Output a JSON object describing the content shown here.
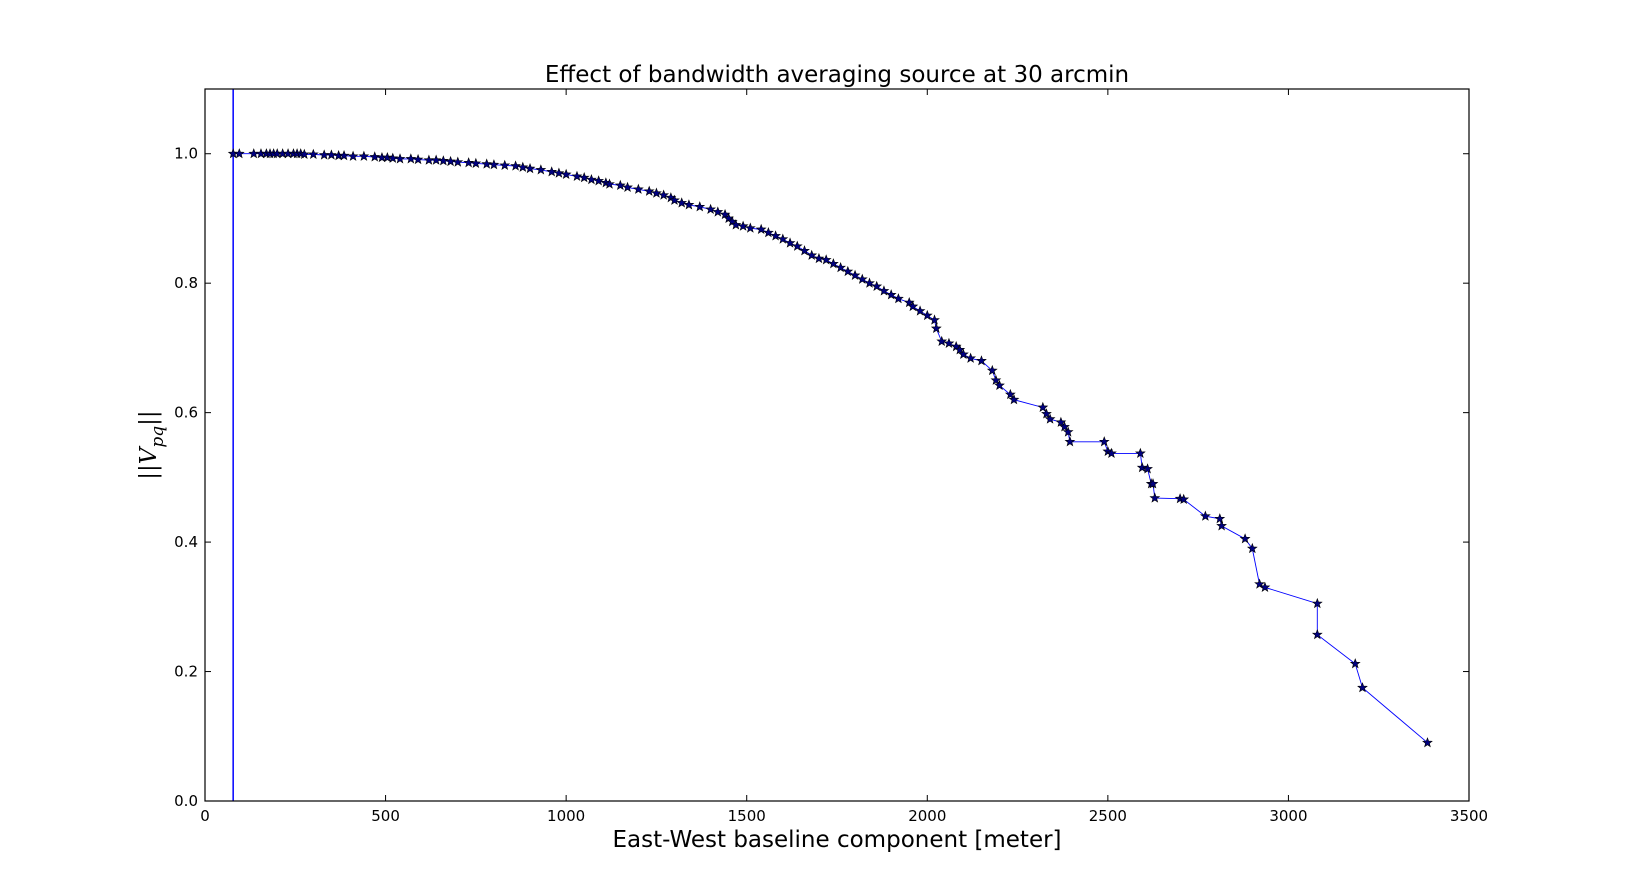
{
  "chart_data": {
    "type": "line",
    "title": "Effect of bandwidth averaging source at 30 arcmin",
    "xlabel": "East-West baseline component [meter]",
    "ylabel_main": "||V",
    "ylabel_sub": "pq",
    "ylabel_end": "||",
    "xlim": [
      0,
      3500
    ],
    "ylim": [
      0.0,
      1.1
    ],
    "xticks": [
      0,
      500,
      1000,
      1500,
      2000,
      2500,
      3000,
      3500
    ],
    "yticks": [
      0.0,
      0.2,
      0.4,
      0.6,
      0.8,
      1.0
    ],
    "xtick_labels": [
      "0",
      "500",
      "1000",
      "1500",
      "2000",
      "2500",
      "3000",
      "3500"
    ],
    "ytick_labels": [
      "0.0",
      "0.2",
      "0.4",
      "0.6",
      "0.8",
      "1.0"
    ],
    "grid": false,
    "vertical_line_x": 78,
    "line_color": "#0000ff",
    "marker_color": "#000080",
    "marker": "star",
    "series": [
      {
        "x": [
          78,
          95,
          135,
          155,
          170,
          180,
          190,
          200,
          215,
          230,
          245,
          255,
          265,
          275,
          300,
          330,
          350,
          370,
          385,
          410,
          440,
          470,
          490,
          505,
          520,
          540,
          570,
          590,
          620,
          640,
          660,
          680,
          700,
          730,
          750,
          780,
          800,
          830,
          860,
          880,
          900,
          930,
          960,
          980,
          1000,
          1030,
          1050,
          1070,
          1090,
          1110,
          1120,
          1150,
          1170,
          1200,
          1230,
          1250,
          1270,
          1290,
          1300,
          1320,
          1340,
          1370,
          1400,
          1420,
          1440,
          1450,
          1460,
          1470,
          1490,
          1510,
          1540,
          1560,
          1580,
          1600,
          1620,
          1640,
          1660,
          1680,
          1700,
          1720,
          1740,
          1760,
          1780,
          1800,
          1820,
          1840,
          1860,
          1880,
          1900,
          1920,
          1950,
          1960,
          1980,
          2000,
          2020,
          2025,
          2040,
          2060,
          2080,
          2090,
          2100,
          2120,
          2150,
          2180,
          2190,
          2200,
          2230,
          2240,
          2320,
          2330,
          2340,
          2370,
          2380,
          2390,
          2395,
          2490,
          2500,
          2510,
          2590,
          2595,
          2610,
          2620,
          2625,
          2630,
          2700,
          2710,
          2770,
          2810,
          2815,
          2880,
          2900,
          2920,
          2935,
          3080,
          3080,
          3185,
          3205,
          3385
        ],
        "y": [
          1.0,
          1.0,
          1.0,
          1.0,
          1.0,
          1.0,
          1.0,
          1.0,
          1.0,
          1.0,
          1.0,
          1.0,
          1.0,
          0.999,
          0.999,
          0.998,
          0.998,
          0.997,
          0.997,
          0.996,
          0.996,
          0.995,
          0.994,
          0.994,
          0.993,
          0.992,
          0.992,
          0.991,
          0.99,
          0.99,
          0.989,
          0.988,
          0.987,
          0.986,
          0.985,
          0.984,
          0.983,
          0.982,
          0.981,
          0.979,
          0.977,
          0.975,
          0.972,
          0.97,
          0.968,
          0.965,
          0.963,
          0.96,
          0.958,
          0.955,
          0.953,
          0.951,
          0.948,
          0.945,
          0.942,
          0.939,
          0.936,
          0.932,
          0.928,
          0.924,
          0.921,
          0.918,
          0.914,
          0.91,
          0.906,
          0.9,
          0.895,
          0.89,
          0.888,
          0.885,
          0.883,
          0.878,
          0.873,
          0.868,
          0.862,
          0.857,
          0.85,
          0.843,
          0.838,
          0.836,
          0.83,
          0.824,
          0.818,
          0.812,
          0.806,
          0.8,
          0.795,
          0.788,
          0.782,
          0.776,
          0.77,
          0.764,
          0.757,
          0.75,
          0.743,
          0.73,
          0.71,
          0.707,
          0.702,
          0.697,
          0.69,
          0.684,
          0.68,
          0.665,
          0.65,
          0.642,
          0.628,
          0.62,
          0.608,
          0.598,
          0.59,
          0.585,
          0.578,
          0.57,
          0.555,
          0.555,
          0.54,
          0.537,
          0.537,
          0.515,
          0.513,
          0.49,
          0.49,
          0.468,
          0.467,
          0.466,
          0.44,
          0.436,
          0.425,
          0.405,
          0.39,
          0.335,
          0.33,
          0.305,
          0.257,
          0.212,
          0.175,
          0.09
        ]
      }
    ]
  }
}
